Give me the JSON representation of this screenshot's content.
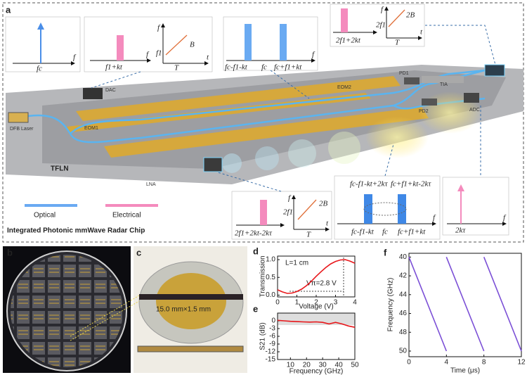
{
  "panels": {
    "labels": [
      "a",
      "b",
      "c",
      "d",
      "e",
      "f"
    ]
  },
  "diagram": {
    "insets": [
      {
        "labels": [
          "fc",
          "f"
        ]
      },
      {
        "labels": [
          "f1+kt",
          "f",
          "f",
          "t",
          "f1",
          "B",
          "T"
        ]
      },
      {
        "labels": [
          "fc-f1-kt",
          "fc",
          "fc+f1+kt",
          "f"
        ]
      },
      {
        "labels": [
          "2f1+2kt",
          "f",
          "t",
          "2f1",
          "2B",
          "T"
        ]
      },
      {
        "labels": [
          "2f1+2kt-2kτ",
          "f",
          "t",
          "2f1",
          "2B",
          "T"
        ]
      },
      {
        "labels": [
          "fc-f1-kt+2kτ",
          "fc+f1+kt-2kτ",
          "fc-f1-kt",
          "fc",
          "fc+f1+kt",
          "f"
        ]
      },
      {
        "labels": [
          "2kτ",
          "f"
        ]
      }
    ],
    "components": [
      "DFB Laser",
      "DAC",
      "EOM1",
      "EOM2",
      "TFLN",
      "LNA",
      "PD1",
      "TIA",
      "PD2",
      "ADC"
    ],
    "legend": [
      "Optical",
      "Electrical"
    ],
    "caption": "Integrated Photonic mmWave Radar Chip"
  },
  "photo_c": {
    "annotation": "15.0 mm×1.5 mm"
  },
  "chart_data": [
    {
      "type": "line",
      "xlabel": "Voltage (V)",
      "ylabel": "Transmission",
      "annotations": [
        "L=1 cm",
        "Vπ=2.8 V"
      ],
      "x": [
        0,
        0.25,
        0.5,
        0.75,
        1,
        1.25,
        1.5,
        1.75,
        2,
        2.25,
        2.5,
        2.75,
        3,
        3.25,
        3.5,
        3.75,
        4
      ],
      "series": [
        {
          "color": "#e8171b",
          "values": [
            0.15,
            0.09,
            0.05,
            0.06,
            0.1,
            0.17,
            0.27,
            0.39,
            0.53,
            0.66,
            0.78,
            0.88,
            0.95,
            0.99,
            1.0,
            0.96,
            0.9
          ]
        }
      ],
      "xlim": [
        0,
        4
      ],
      "xticks": [
        0,
        1,
        2,
        3,
        4
      ],
      "ylim": [
        -0.05,
        1.1
      ],
      "yticks": [
        {
          "value": 0,
          "label": "0.0"
        },
        {
          "value": 0.5,
          "label": "0.5"
        },
        {
          "value": 1,
          "label": "1.0"
        }
      ]
    },
    {
      "type": "line",
      "xlabel": "Frequency (GHz)",
      "ylabel": "S21 (dB)",
      "x": [
        2,
        6,
        10,
        14,
        18,
        22,
        26,
        30,
        34,
        38,
        42,
        46,
        50
      ],
      "series": [
        {
          "color": "#e8171b",
          "values": [
            0.2,
            0,
            -0.2,
            -0.3,
            -0.4,
            -0.5,
            -0.4,
            -0.6,
            -1.2,
            -0.6,
            -1.2,
            -2,
            -2.5
          ]
        }
      ],
      "xlim": [
        2,
        50
      ],
      "xticks": [
        10,
        20,
        30,
        40,
        50
      ],
      "ylim": [
        -15,
        3
      ],
      "yticks": [
        0,
        -3,
        -6,
        -9,
        -12,
        -15
      ]
    },
    {
      "type": "line",
      "xlabel": "Time (μs)",
      "ylabel": "Frequency (GHz)",
      "series": [
        {
          "color": "#7b4fd6",
          "x": [
            0,
            4
          ],
          "values": [
            40,
            50
          ]
        },
        {
          "color": "#7b4fd6",
          "x": [
            4,
            8
          ],
          "values": [
            40,
            50
          ]
        },
        {
          "color": "#7b4fd6",
          "x": [
            8,
            12
          ],
          "values": [
            40,
            50
          ]
        }
      ],
      "xlim": [
        0,
        12
      ],
      "xticks": [
        0,
        4,
        8,
        12
      ],
      "ylim": [
        50.6,
        39.6
      ],
      "yticks": [
        40,
        42,
        44,
        46,
        48,
        50
      ]
    }
  ]
}
